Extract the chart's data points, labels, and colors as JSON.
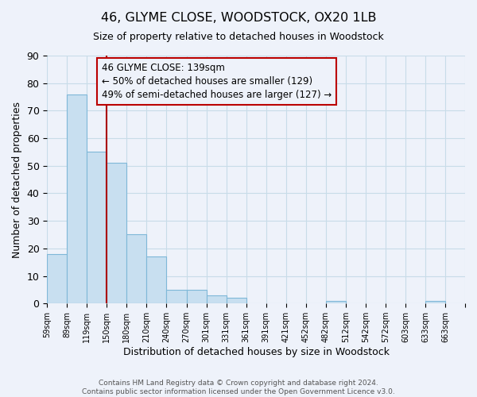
{
  "title": "46, GLYME CLOSE, WOODSTOCK, OX20 1LB",
  "subtitle": "Size of property relative to detached houses in Woodstock",
  "xlabel": "Distribution of detached houses by size in Woodstock",
  "ylabel": "Number of detached properties",
  "footer_line1": "Contains HM Land Registry data © Crown copyright and database right 2024.",
  "footer_line2": "Contains public sector information licensed under the Open Government Licence v3.0.",
  "bin_labels": [
    "59sqm",
    "89sqm",
    "119sqm",
    "150sqm",
    "180sqm",
    "210sqm",
    "240sqm",
    "270sqm",
    "301sqm",
    "331sqm",
    "361sqm",
    "391sqm",
    "421sqm",
    "452sqm",
    "482sqm",
    "512sqm",
    "542sqm",
    "572sqm",
    "603sqm",
    "633sqm",
    "663sqm"
  ],
  "bar_values": [
    18,
    76,
    55,
    51,
    25,
    17,
    5,
    5,
    3,
    2,
    0,
    0,
    0,
    0,
    1,
    0,
    0,
    0,
    0,
    1,
    0
  ],
  "bar_color": "#c8dff0",
  "bar_edgecolor": "#7fb8d8",
  "grid_color": "#c8dce8",
  "background_color": "#eef2fa",
  "vline_x": 3.0,
  "vline_color": "#aa0000",
  "annotation_text": "46 GLYME CLOSE: 139sqm\n← 50% of detached houses are smaller (129)\n49% of semi-detached houses are larger (127) →",
  "annotation_box_edgecolor": "#bb0000",
  "ylim": [
    0,
    90
  ],
  "yticks": [
    0,
    10,
    20,
    30,
    40,
    50,
    60,
    70,
    80,
    90
  ],
  "figsize": [
    6.0,
    5.0
  ],
  "dpi": 100
}
